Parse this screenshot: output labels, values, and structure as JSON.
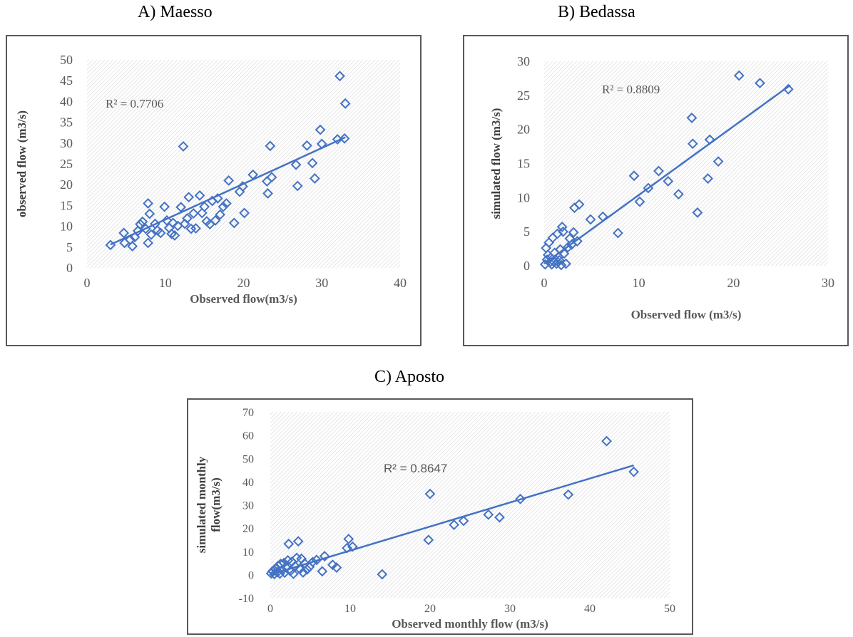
{
  "colors": {
    "marker": "#4472c4",
    "trendline": "#4472c4",
    "hatch": "#d6d6d6",
    "border": "#595959",
    "axis_text": "#595959"
  },
  "panels": [
    {
      "title": "A)  Maesso",
      "chart_data": {
        "type": "scatter",
        "title": "",
        "xlabel": "Observed flow(m3/s)",
        "ylabel": "observed flow (m3/s)",
        "xlim": [
          0,
          40
        ],
        "ylim": [
          0,
          50
        ],
        "xticks": [
          0,
          10,
          20,
          30,
          40
        ],
        "yticks": [
          0,
          5,
          10,
          15,
          20,
          25,
          30,
          35,
          40,
          45,
          50
        ],
        "r2_label": "R² = 0.7706",
        "trendline": {
          "x": [
            3,
            33
          ],
          "y": [
            5.6,
            31.4
          ]
        },
        "points": [
          [
            3,
            5.5
          ],
          [
            4.7,
            8.4
          ],
          [
            4.8,
            6
          ],
          [
            5.5,
            6.8
          ],
          [
            5.8,
            5.2
          ],
          [
            6.1,
            7.4
          ],
          [
            6.5,
            8.9
          ],
          [
            6.8,
            10.5
          ],
          [
            7.1,
            11.1
          ],
          [
            7.5,
            9.4
          ],
          [
            7.8,
            6
          ],
          [
            7.8,
            15.5
          ],
          [
            8,
            13
          ],
          [
            8.2,
            8
          ],
          [
            8.7,
            10.6
          ],
          [
            9,
            9
          ],
          [
            9.4,
            8.4
          ],
          [
            9.9,
            14.7
          ],
          [
            10.2,
            11.4
          ],
          [
            10.5,
            9.6
          ],
          [
            10.8,
            8.2
          ],
          [
            11,
            10.8
          ],
          [
            11.2,
            7.8
          ],
          [
            11.6,
            10.1
          ],
          [
            12,
            14.6
          ],
          [
            12.3,
            29.2
          ],
          [
            12.5,
            10.6
          ],
          [
            12.8,
            11.9
          ],
          [
            13,
            17
          ],
          [
            13.3,
            9.4
          ],
          [
            13.6,
            13.1
          ],
          [
            13.9,
            9.5
          ],
          [
            14.4,
            17.4
          ],
          [
            14.7,
            13.2
          ],
          [
            15,
            14.7
          ],
          [
            15.3,
            11.2
          ],
          [
            15.7,
            10.5
          ],
          [
            16,
            16.1
          ],
          [
            16.4,
            11.4
          ],
          [
            16.7,
            16.7
          ],
          [
            17,
            12.8
          ],
          [
            17.4,
            14.7
          ],
          [
            17.8,
            15.5
          ],
          [
            18.1,
            21
          ],
          [
            18.8,
            10.8
          ],
          [
            19.5,
            18.3
          ],
          [
            19.9,
            19.6
          ],
          [
            20.1,
            13.2
          ],
          [
            21.2,
            22.4
          ],
          [
            23,
            20.8
          ],
          [
            23.1,
            17.9
          ],
          [
            23.4,
            29.3
          ],
          [
            23.6,
            21.8
          ],
          [
            26.7,
            24.8
          ],
          [
            26.9,
            19.7
          ],
          [
            28.1,
            29.4
          ],
          [
            28.8,
            25.2
          ],
          [
            29.1,
            21.5
          ],
          [
            29.8,
            33.2
          ],
          [
            30,
            29.8
          ],
          [
            32,
            30.9
          ],
          [
            32.3,
            46.1
          ],
          [
            32.9,
            31.1
          ],
          [
            33,
            39.5
          ]
        ]
      }
    },
    {
      "title": "B) Bedassa",
      "chart_data": {
        "type": "scatter",
        "title": "",
        "xlabel": "Observed flow (m3/s)",
        "ylabel": "simulated flow (m3/s)",
        "xlim": [
          0,
          30
        ],
        "ylim": [
          0,
          30
        ],
        "xticks": [
          0,
          10,
          20,
          30
        ],
        "yticks": [
          0,
          5,
          10,
          15,
          20,
          25,
          30
        ],
        "r2_label": "R² = 0.8809",
        "trendline": {
          "x": [
            0,
            26
          ],
          "y": [
            0.3,
            26.5
          ]
        },
        "points": [
          [
            0.1,
            0.2
          ],
          [
            0.2,
            2.6
          ],
          [
            0.3,
            0.9
          ],
          [
            0.4,
            1.6
          ],
          [
            0.5,
            3.4
          ],
          [
            0.6,
            0.5
          ],
          [
            0.7,
            1.2
          ],
          [
            0.8,
            0.2
          ],
          [
            0.9,
            4.1
          ],
          [
            1,
            0.6
          ],
          [
            1.1,
            1.9
          ],
          [
            1.2,
            0.9
          ],
          [
            1.3,
            0.3
          ],
          [
            1.4,
            4.7
          ],
          [
            1.5,
            1.3
          ],
          [
            1.6,
            0.8
          ],
          [
            1.7,
            2.4
          ],
          [
            1.8,
            0.1
          ],
          [
            1.9,
            5.7
          ],
          [
            2,
            5
          ],
          [
            2.1,
            1.8
          ],
          [
            2.3,
            0.3
          ],
          [
            2.5,
            2.7
          ],
          [
            2.7,
            4
          ],
          [
            2.9,
            3.1
          ],
          [
            3.1,
            4.9
          ],
          [
            3.2,
            8.5
          ],
          [
            3.5,
            3.6
          ],
          [
            3.7,
            9
          ],
          [
            4.9,
            6.8
          ],
          [
            6.2,
            7.2
          ],
          [
            7.8,
            4.8
          ],
          [
            9.5,
            13.2
          ],
          [
            10.1,
            9.4
          ],
          [
            11,
            11.4
          ],
          [
            12.1,
            13.9
          ],
          [
            13.1,
            12.4
          ],
          [
            14.2,
            10.5
          ],
          [
            15.6,
            21.7
          ],
          [
            15.7,
            17.9
          ],
          [
            16.2,
            7.8
          ],
          [
            17.3,
            12.8
          ],
          [
            17.5,
            18.5
          ],
          [
            18.4,
            15.3
          ],
          [
            20.6,
            27.9
          ],
          [
            22.8,
            26.8
          ],
          [
            25.8,
            25.9
          ]
        ]
      }
    },
    {
      "title": "C) Aposto",
      "chart_data": {
        "type": "scatter",
        "title": "",
        "xlabel": "Observed monthly flow (m3/s)",
        "ylabel": "simulated monthly flow(m3/s)",
        "ylabel_lines": [
          "simulated monthly",
          "flow(m3/s)"
        ],
        "xlim": [
          0,
          50
        ],
        "ylim": [
          -10,
          70
        ],
        "xticks": [
          0,
          10,
          20,
          30,
          40,
          50
        ],
        "yticks": [
          -10,
          0,
          10,
          20,
          30,
          40,
          50,
          60,
          70
        ],
        "r2_label": "R² = 0.8647",
        "trendline": {
          "x": [
            0,
            45.5
          ],
          "y": [
            0,
            47
          ]
        },
        "points": [
          [
            0.1,
            0.5
          ],
          [
            0.3,
            1.5
          ],
          [
            0.5,
            0.2
          ],
          [
            0.7,
            2.5
          ],
          [
            0.9,
            1
          ],
          [
            1,
            3.8
          ],
          [
            1.2,
            0.4
          ],
          [
            1.3,
            4.6
          ],
          [
            1.5,
            2
          ],
          [
            1.7,
            5
          ],
          [
            1.8,
            0.8
          ],
          [
            2,
            3
          ],
          [
            2.2,
            6.1
          ],
          [
            2.3,
            13.2
          ],
          [
            2.5,
            1.5
          ],
          [
            2.7,
            5.5
          ],
          [
            2.9,
            0.3
          ],
          [
            3.1,
            3.6
          ],
          [
            3.3,
            7.2
          ],
          [
            3.5,
            14.3
          ],
          [
            3.7,
            2.4
          ],
          [
            3.9,
            6.8
          ],
          [
            4.1,
            0.9
          ],
          [
            4.3,
            4.8
          ],
          [
            4.6,
            2.2
          ],
          [
            4.9,
            3.3
          ],
          [
            5.3,
            5.4
          ],
          [
            5.8,
            6.3
          ],
          [
            6.5,
            1.4
          ],
          [
            6.8,
            7.9
          ],
          [
            7.8,
            4.2
          ],
          [
            8.3,
            3
          ],
          [
            9.6,
            11.4
          ],
          [
            9.8,
            15.3
          ],
          [
            10.3,
            12
          ],
          [
            14,
            0.1
          ],
          [
            19.8,
            14.9
          ],
          [
            20,
            34.7
          ],
          [
            23,
            21.4
          ],
          [
            24.2,
            23.1
          ],
          [
            27.3,
            25.8
          ],
          [
            28.7,
            24.6
          ],
          [
            31.3,
            32.5
          ],
          [
            37.3,
            34.4
          ],
          [
            42.1,
            57.4
          ],
          [
            45.5,
            44.2
          ]
        ]
      }
    }
  ]
}
